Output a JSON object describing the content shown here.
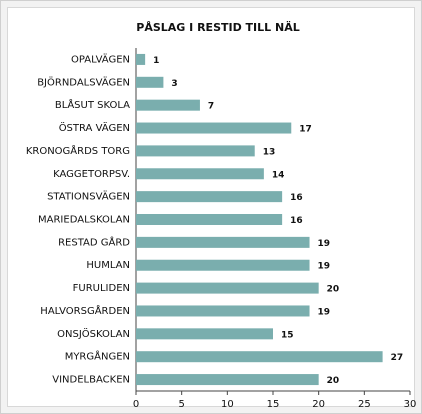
{
  "chart_data": {
    "type": "bar",
    "orientation": "horizontal",
    "title": "PÅSLAG I RESTID TILL NÄL",
    "categories": [
      "OPALVÄGEN",
      "BJÖRNDALSVÄGEN",
      "BLÅSUT SKOLA",
      "ÖSTRA VÄGEN",
      "KRONOGÅRDS TORG",
      "KAGGETORPSV.",
      "STATIONSVÄGEN",
      "MARIEDALSKOLAN",
      "RESTAD GÅRD",
      "HUMLAN",
      "FURULIDEN",
      "HALVORSGÅRDEN",
      "ONSJÖSKOLAN",
      "MYRGÅNGEN",
      "VINDELBACKEN"
    ],
    "values": [
      1,
      3,
      7,
      17,
      13,
      14,
      16,
      16,
      19,
      19,
      20,
      19,
      15,
      27,
      20
    ],
    "color": "#7aaeae",
    "xlim": [
      0,
      30
    ],
    "xticks": [
      0,
      5,
      10,
      15,
      20,
      25,
      30
    ]
  }
}
